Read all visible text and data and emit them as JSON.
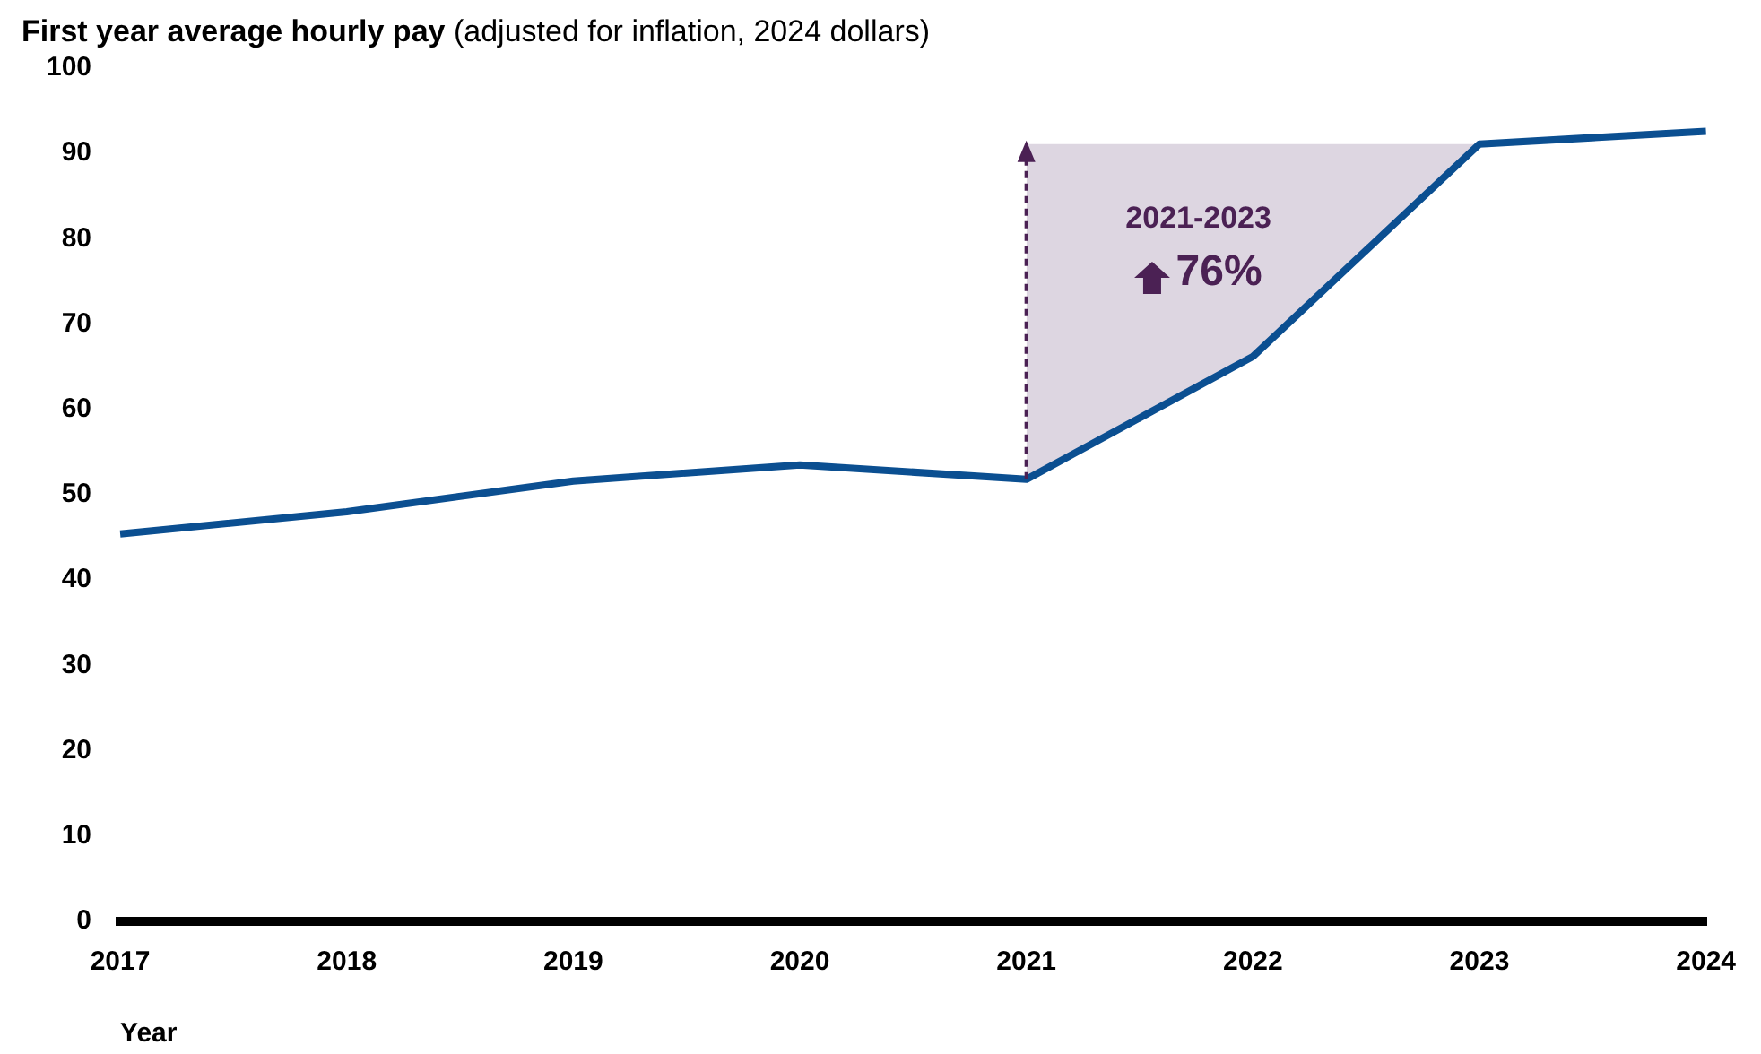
{
  "chart_data": {
    "type": "line",
    "title": "First year average hourly pay",
    "subtitle": "(adjusted for inflation, 2024 dollars)",
    "xlabel": "Year",
    "categories": [
      "2017",
      "2018",
      "2019",
      "2020",
      "2021",
      "2022",
      "2023",
      "2024"
    ],
    "series": [
      {
        "color": "#0b4f91",
        "values": [
          45.4,
          48.0,
          51.6,
          53.5,
          51.8,
          66.2,
          91.1,
          92.6
        ],
        "lower": [
          null,
          null,
          null,
          null,
          51.8,
          66.2,
          91.1,
          null
        ],
        "upper": [
          null,
          null,
          null,
          null,
          91.1,
          91.1,
          91.1,
          null
        ]
      }
    ],
    "ylim": [
      0,
      100
    ],
    "yticks": [
      0,
      10,
      20,
      30,
      40,
      50,
      60,
      70,
      80,
      90,
      100
    ],
    "grid": false,
    "legend": false,
    "marker": "none",
    "line_style": "solid",
    "annotations": [
      "2021-2023",
      "76%"
    ]
  }
}
